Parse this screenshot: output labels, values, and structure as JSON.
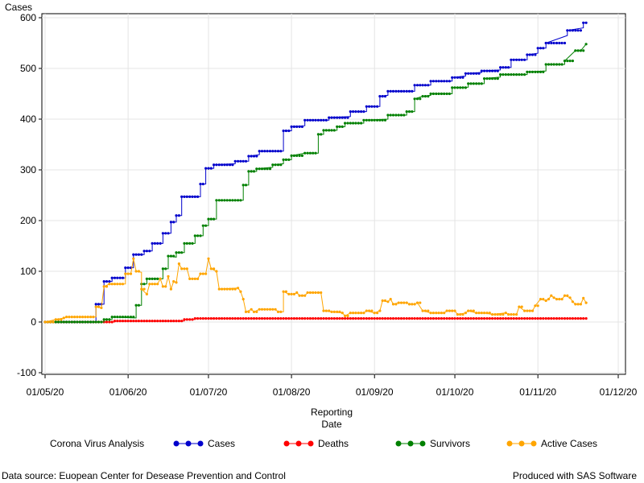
{
  "chart_data": {
    "type": "line",
    "ylabel": "Cases",
    "xlabel_lines": [
      "Reporting",
      "Date"
    ],
    "ylim": [
      -100,
      600
    ],
    "yticks": [
      -100,
      0,
      100,
      200,
      300,
      400,
      500,
      600
    ],
    "xlim": [
      "2020-05-01",
      "2020-12-01"
    ],
    "xticks": [
      {
        "date": "2020-05-01",
        "label": "01/05/20"
      },
      {
        "date": "2020-06-01",
        "label": "01/06/20"
      },
      {
        "date": "2020-07-01",
        "label": "01/07/20"
      },
      {
        "date": "2020-08-01",
        "label": "01/08/20"
      },
      {
        "date": "2020-09-01",
        "label": "01/09/20"
      },
      {
        "date": "2020-10-01",
        "label": "01/10/20"
      },
      {
        "date": "2020-11-01",
        "label": "01/11/20"
      },
      {
        "date": "2020-12-01",
        "label": "01/12/20"
      }
    ],
    "grid": true,
    "legend_placement": "bottom",
    "legend_title": "Corona Virus Analysis",
    "series": [
      {
        "name": "Cases",
        "color": "#0000cc",
        "points": [
          [
            "2020-05-01",
            0
          ],
          [
            "2020-05-20",
            0
          ],
          [
            "2020-05-20",
            35
          ],
          [
            "2020-05-23",
            35
          ],
          [
            "2020-05-23",
            80
          ],
          [
            "2020-05-26",
            80
          ],
          [
            "2020-05-26",
            87
          ],
          [
            "2020-05-31",
            87
          ],
          [
            "2020-05-31",
            107
          ],
          [
            "2020-06-03",
            107
          ],
          [
            "2020-06-03",
            133
          ],
          [
            "2020-06-07",
            133
          ],
          [
            "2020-06-07",
            140
          ],
          [
            "2020-06-10",
            140
          ],
          [
            "2020-06-10",
            155
          ],
          [
            "2020-06-14",
            155
          ],
          [
            "2020-06-14",
            175
          ],
          [
            "2020-06-17",
            175
          ],
          [
            "2020-06-17",
            197
          ],
          [
            "2020-06-19",
            197
          ],
          [
            "2020-06-19",
            210
          ],
          [
            "2020-06-21",
            210
          ],
          [
            "2020-06-21",
            247
          ],
          [
            "2020-06-28",
            247
          ],
          [
            "2020-06-28",
            272
          ],
          [
            "2020-06-30",
            272
          ],
          [
            "2020-06-30",
            303
          ],
          [
            "2020-07-03",
            303
          ],
          [
            "2020-07-03",
            310
          ],
          [
            "2020-07-11",
            312
          ],
          [
            "2020-07-11",
            317
          ],
          [
            "2020-07-16",
            317
          ],
          [
            "2020-07-16",
            327
          ],
          [
            "2020-07-20",
            330
          ],
          [
            "2020-07-20",
            337
          ],
          [
            "2020-07-29",
            337
          ],
          [
            "2020-07-29",
            377
          ],
          [
            "2020-08-01",
            377
          ],
          [
            "2020-08-01",
            385
          ],
          [
            "2020-08-06",
            387
          ],
          [
            "2020-08-06",
            398
          ],
          [
            "2020-08-15",
            398
          ],
          [
            "2020-08-15",
            403
          ],
          [
            "2020-08-23",
            405
          ],
          [
            "2020-08-23",
            415
          ],
          [
            "2020-08-29",
            415
          ],
          [
            "2020-08-29",
            425
          ],
          [
            "2020-09-03",
            425
          ],
          [
            "2020-09-03",
            445
          ],
          [
            "2020-09-06",
            447
          ],
          [
            "2020-09-06",
            455
          ],
          [
            "2020-09-16",
            455
          ],
          [
            "2020-09-16",
            467
          ],
          [
            "2020-09-22",
            467
          ],
          [
            "2020-09-22",
            475
          ],
          [
            "2020-09-30",
            475
          ],
          [
            "2020-09-30",
            482
          ],
          [
            "2020-10-05",
            485
          ],
          [
            "2020-10-05",
            490
          ],
          [
            "2020-10-11",
            492
          ],
          [
            "2020-10-11",
            495
          ],
          [
            "2020-10-18",
            497
          ],
          [
            "2020-10-18",
            502
          ],
          [
            "2020-10-22",
            502
          ],
          [
            "2020-10-22",
            517
          ],
          [
            "2020-10-28",
            517
          ],
          [
            "2020-10-28",
            527
          ],
          [
            "2020-11-01",
            530
          ],
          [
            "2020-11-01",
            540
          ],
          [
            "2020-11-04",
            540
          ],
          [
            "2020-11-04",
            550
          ],
          [
            "2020-11-12",
            565
          ],
          [
            "2020-11-12",
            575
          ],
          [
            "2020-11-18",
            580
          ],
          [
            "2020-11-18",
            590
          ],
          [
            "2020-11-19",
            590
          ]
        ]
      },
      {
        "name": "Deaths",
        "color": "#ff0000",
        "points": [
          [
            "2020-05-01",
            0
          ],
          [
            "2020-05-27",
            0
          ],
          [
            "2020-05-27",
            2
          ],
          [
            "2020-06-22",
            2
          ],
          [
            "2020-06-22",
            5
          ],
          [
            "2020-06-26",
            5
          ],
          [
            "2020-06-26",
            7
          ],
          [
            "2020-11-19",
            7
          ]
        ]
      },
      {
        "name": "Survivors",
        "color": "#008000",
        "points": [
          [
            "2020-05-01",
            0
          ],
          [
            "2020-05-23",
            0
          ],
          [
            "2020-05-23",
            5
          ],
          [
            "2020-05-26",
            5
          ],
          [
            "2020-05-26",
            10
          ],
          [
            "2020-06-04",
            8
          ],
          [
            "2020-06-04",
            33
          ],
          [
            "2020-06-06",
            33
          ],
          [
            "2020-06-06",
            75
          ],
          [
            "2020-06-08",
            75
          ],
          [
            "2020-06-08",
            85
          ],
          [
            "2020-06-14",
            85
          ],
          [
            "2020-06-14",
            105
          ],
          [
            "2020-06-16",
            105
          ],
          [
            "2020-06-16",
            130
          ],
          [
            "2020-06-19",
            128
          ],
          [
            "2020-06-19",
            137
          ],
          [
            "2020-06-22",
            137
          ],
          [
            "2020-06-22",
            155
          ],
          [
            "2020-06-26",
            155
          ],
          [
            "2020-06-26",
            170
          ],
          [
            "2020-06-29",
            170
          ],
          [
            "2020-06-29",
            190
          ],
          [
            "2020-07-01",
            190
          ],
          [
            "2020-07-01",
            203
          ],
          [
            "2020-07-04",
            203
          ],
          [
            "2020-07-04",
            240
          ],
          [
            "2020-07-14",
            240
          ],
          [
            "2020-07-14",
            270
          ],
          [
            "2020-07-16",
            270
          ],
          [
            "2020-07-16",
            297
          ],
          [
            "2020-07-19",
            297
          ],
          [
            "2020-07-19",
            302
          ],
          [
            "2020-07-25",
            305
          ],
          [
            "2020-07-25",
            310
          ],
          [
            "2020-07-29",
            312
          ],
          [
            "2020-07-29",
            320
          ],
          [
            "2020-08-01",
            320
          ],
          [
            "2020-08-01",
            328
          ],
          [
            "2020-08-06",
            333
          ],
          [
            "2020-08-11",
            333
          ],
          [
            "2020-08-11",
            370
          ],
          [
            "2020-08-13",
            370
          ],
          [
            "2020-08-13",
            378
          ],
          [
            "2020-08-18",
            378
          ],
          [
            "2020-08-18",
            385
          ],
          [
            "2020-08-21",
            385
          ],
          [
            "2020-08-21",
            392
          ],
          [
            "2020-08-28",
            392
          ],
          [
            "2020-08-28",
            398
          ],
          [
            "2020-09-06",
            400
          ],
          [
            "2020-09-06",
            408
          ],
          [
            "2020-09-13",
            408
          ],
          [
            "2020-09-13",
            415
          ],
          [
            "2020-09-16",
            415
          ],
          [
            "2020-09-16",
            440
          ],
          [
            "2020-09-19",
            445
          ],
          [
            "2020-09-22",
            447
          ],
          [
            "2020-09-22",
            450
          ],
          [
            "2020-09-30",
            450
          ],
          [
            "2020-09-30",
            462
          ],
          [
            "2020-10-06",
            463
          ],
          [
            "2020-10-06",
            470
          ],
          [
            "2020-10-12",
            470
          ],
          [
            "2020-10-12",
            480
          ],
          [
            "2020-10-18",
            483
          ],
          [
            "2020-10-18",
            488
          ],
          [
            "2020-10-28",
            488
          ],
          [
            "2020-10-28",
            493
          ],
          [
            "2020-11-04",
            495
          ],
          [
            "2020-11-04",
            508
          ],
          [
            "2020-11-11",
            508
          ],
          [
            "2020-11-11",
            515
          ],
          [
            "2020-11-15",
            535
          ],
          [
            "2020-11-17",
            535
          ],
          [
            "2020-11-19",
            548
          ]
        ]
      },
      {
        "name": "Active Cases",
        "color": "#ffa500",
        "points": [
          [
            "2020-05-01",
            0
          ],
          [
            "2020-05-05",
            5
          ],
          [
            "2020-05-08",
            8
          ],
          [
            "2020-05-09",
            10
          ],
          [
            "2020-05-20",
            10
          ],
          [
            "2020-05-20",
            30
          ],
          [
            "2020-05-22",
            28
          ],
          [
            "2020-05-23",
            70
          ],
          [
            "2020-05-25",
            75
          ],
          [
            "2020-05-31",
            75
          ],
          [
            "2020-05-31",
            95
          ],
          [
            "2020-06-02",
            95
          ],
          [
            "2020-06-03",
            125
          ],
          [
            "2020-06-04",
            100
          ],
          [
            "2020-06-06",
            98
          ],
          [
            "2020-06-06",
            65
          ],
          [
            "2020-06-08",
            55
          ],
          [
            "2020-06-09",
            75
          ],
          [
            "2020-06-12",
            75
          ],
          [
            "2020-06-13",
            85
          ],
          [
            "2020-06-14",
            70
          ],
          [
            "2020-06-15",
            70
          ],
          [
            "2020-06-16",
            90
          ],
          [
            "2020-06-17",
            65
          ],
          [
            "2020-06-18",
            80
          ],
          [
            "2020-06-19",
            78
          ],
          [
            "2020-06-20",
            115
          ],
          [
            "2020-06-21",
            105
          ],
          [
            "2020-06-23",
            105
          ],
          [
            "2020-06-24",
            85
          ],
          [
            "2020-06-27",
            85
          ],
          [
            "2020-06-28",
            95
          ],
          [
            "2020-06-30",
            95
          ],
          [
            "2020-07-01",
            125
          ],
          [
            "2020-07-02",
            105
          ],
          [
            "2020-07-04",
            100
          ],
          [
            "2020-07-05",
            65
          ],
          [
            "2020-07-12",
            67
          ],
          [
            "2020-07-13",
            60
          ],
          [
            "2020-07-14",
            45
          ],
          [
            "2020-07-15",
            20
          ],
          [
            "2020-07-17",
            25
          ],
          [
            "2020-07-18",
            20
          ],
          [
            "2020-07-20",
            25
          ],
          [
            "2020-07-26",
            25
          ],
          [
            "2020-07-27",
            20
          ],
          [
            "2020-07-29",
            20
          ],
          [
            "2020-07-29",
            60
          ],
          [
            "2020-07-31",
            55
          ],
          [
            "2020-08-02",
            55
          ],
          [
            "2020-08-03",
            58
          ],
          [
            "2020-08-04",
            52
          ],
          [
            "2020-08-06",
            52
          ],
          [
            "2020-08-07",
            58
          ],
          [
            "2020-08-12",
            58
          ],
          [
            "2020-08-13",
            22
          ],
          [
            "2020-08-16",
            20
          ],
          [
            "2020-08-20",
            18
          ],
          [
            "2020-08-21",
            12
          ],
          [
            "2020-08-23",
            18
          ],
          [
            "2020-08-28",
            18
          ],
          [
            "2020-08-29",
            22
          ],
          [
            "2020-09-01",
            18
          ],
          [
            "2020-09-03",
            22
          ],
          [
            "2020-09-04",
            42
          ],
          [
            "2020-09-06",
            40
          ],
          [
            "2020-09-07",
            45
          ],
          [
            "2020-09-08",
            35
          ],
          [
            "2020-09-10",
            38
          ],
          [
            "2020-09-13",
            38
          ],
          [
            "2020-09-14",
            35
          ],
          [
            "2020-09-16",
            35
          ],
          [
            "2020-09-17",
            38
          ],
          [
            "2020-09-19",
            22
          ],
          [
            "2020-09-22",
            18
          ],
          [
            "2020-09-27",
            18
          ],
          [
            "2020-09-28",
            22
          ],
          [
            "2020-10-01",
            22
          ],
          [
            "2020-10-02",
            15
          ],
          [
            "2020-10-05",
            18
          ],
          [
            "2020-10-06",
            22
          ],
          [
            "2020-10-09",
            18
          ],
          [
            "2020-10-12",
            18
          ],
          [
            "2020-10-15",
            15
          ],
          [
            "2020-10-20",
            18
          ],
          [
            "2020-10-21",
            15
          ],
          [
            "2020-10-24",
            15
          ],
          [
            "2020-10-25",
            30
          ],
          [
            "2020-10-27",
            22
          ],
          [
            "2020-10-30",
            22
          ],
          [
            "2020-10-31",
            32
          ],
          [
            "2020-11-02",
            45
          ],
          [
            "2020-11-04",
            42
          ],
          [
            "2020-11-05",
            45
          ],
          [
            "2020-11-06",
            52
          ],
          [
            "2020-11-07",
            48
          ],
          [
            "2020-11-08",
            45
          ],
          [
            "2020-11-10",
            45
          ],
          [
            "2020-11-11",
            52
          ],
          [
            "2020-11-13",
            48
          ],
          [
            "2020-11-14",
            40
          ],
          [
            "2020-11-15",
            35
          ],
          [
            "2020-11-17",
            35
          ],
          [
            "2020-11-18",
            47
          ],
          [
            "2020-11-19",
            38
          ]
        ]
      }
    ]
  },
  "legend": {
    "title": "Corona Virus Analysis",
    "items": [
      "Cases",
      "Deaths",
      "Survivors",
      "Active Cases"
    ]
  },
  "footnotes": {
    "left": "Data source: Euopean Center for Desease Prevention and Control",
    "right": "Produced with SAS Software"
  }
}
